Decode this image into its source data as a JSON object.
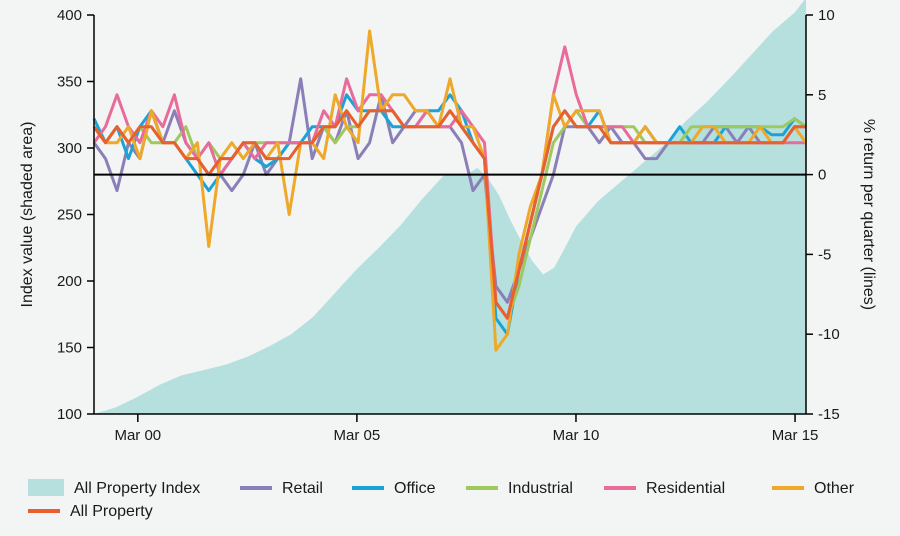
{
  "chart_data": {
    "type": "line",
    "area": {
      "name": "All Property Index",
      "color": "#b5e0de",
      "y_axis": "left",
      "x": [
        1999.0,
        1999.5,
        2000.0,
        2000.5,
        2001.0,
        2001.5,
        2002.0,
        2002.5,
        2003.0,
        2003.5,
        2004.0,
        2004.5,
        2005.0,
        2005.5,
        2006.0,
        2006.5,
        2007.0,
        2007.5,
        2007.75,
        2008.0,
        2008.25,
        2008.5,
        2008.75,
        2009.0,
        2009.25,
        2009.5,
        2009.75,
        2010.0,
        2010.5,
        2011.0,
        2011.5,
        2012.0,
        2012.5,
        2013.0,
        2013.5,
        2014.0,
        2014.5,
        2015.0,
        2015.25
      ],
      "values": [
        100,
        105,
        113,
        122,
        129,
        133,
        137,
        143,
        151,
        160,
        173,
        191,
        209,
        225,
        242,
        262,
        280,
        280,
        285,
        277,
        264,
        246,
        230,
        215,
        205,
        210,
        225,
        241,
        260,
        274,
        288,
        302,
        320,
        335,
        352,
        370,
        388,
        402,
        413
      ]
    },
    "series": [
      {
        "name": "Retail",
        "color": "#8b7fb8",
        "values": [
          2,
          1,
          -1,
          2,
          1,
          4,
          2,
          4,
          2,
          1,
          0,
          0,
          -1,
          0,
          2,
          0,
          1,
          2,
          6,
          1,
          3,
          2,
          4,
          1,
          2,
          5,
          2,
          3,
          4,
          4,
          3,
          3,
          2,
          -1,
          0,
          -7,
          -8,
          -6,
          -4,
          -2,
          0,
          3,
          3,
          3,
          2,
          3,
          2,
          2,
          1,
          1,
          2,
          2,
          2,
          2,
          3,
          3,
          2,
          3,
          2,
          2,
          2,
          3,
          3
        ]
      },
      {
        "name": "Office",
        "color": "#1ba3d8",
        "values": [
          3.5,
          2,
          3,
          1,
          3,
          4,
          2,
          2,
          1,
          0,
          -1,
          0,
          1,
          2,
          1,
          0.5,
          1,
          2,
          2,
          3,
          3,
          3,
          5,
          4,
          4,
          4,
          3,
          3,
          3,
          4,
          4,
          5,
          4,
          2,
          1,
          -9,
          -10,
          -6,
          -3,
          0,
          3,
          4,
          3,
          3,
          4,
          2,
          2,
          2,
          3,
          2,
          2,
          3,
          2,
          2,
          2,
          3,
          3,
          3,
          3,
          2.5,
          2.5,
          3.5,
          3
        ]
      },
      {
        "name": "Industrial",
        "color": "#9dc95f",
        "values": [
          3,
          2,
          3,
          2,
          3,
          2,
          2,
          2,
          3,
          1,
          2,
          1,
          1,
          2,
          2,
          2,
          2,
          2,
          2,
          2,
          3,
          2,
          3,
          3,
          4,
          4,
          4,
          3,
          3,
          3,
          3,
          4,
          3,
          2,
          1,
          -8,
          -9,
          -7,
          -4,
          -1,
          2,
          3,
          4,
          3,
          3,
          3,
          3,
          3,
          2,
          2,
          2,
          2,
          3,
          3,
          3,
          3,
          3,
          3,
          3,
          3,
          3,
          3.5,
          3
        ]
      },
      {
        "name": "Residential",
        "color": "#e96b9a",
        "values": [
          2,
          3,
          5,
          3,
          2,
          4,
          3,
          5,
          2,
          1,
          2,
          0,
          1,
          2,
          1,
          2,
          2,
          2,
          2,
          2,
          4,
          3,
          6,
          4,
          5,
          5,
          4,
          3,
          3,
          4,
          3,
          3,
          4,
          3,
          2,
          -8,
          -9,
          -6,
          -3,
          0,
          5,
          8,
          5,
          3,
          3,
          3,
          3,
          2,
          2,
          2,
          2,
          2,
          2,
          2,
          2,
          2,
          2,
          2,
          2,
          2,
          2,
          2,
          2
        ]
      },
      {
        "name": "Other",
        "color": "#eea82a",
        "values": [
          3,
          2,
          2,
          3,
          1,
          4,
          2,
          2,
          1,
          2,
          -4.5,
          1,
          2,
          1,
          2,
          1,
          2,
          -2.5,
          2,
          2,
          1,
          5,
          3,
          2,
          9,
          4,
          5,
          5,
          4,
          4,
          3,
          6,
          3,
          3,
          1,
          -11,
          -10,
          -5,
          -2,
          0,
          5,
          3,
          4,
          4,
          4,
          2,
          2,
          2,
          3,
          2,
          2,
          2,
          2,
          3,
          3,
          2,
          2,
          2,
          3,
          2,
          2,
          3,
          2
        ]
      },
      {
        "name": "All Property",
        "color": "#e8602f",
        "values": [
          3,
          2,
          3,
          2,
          3,
          3,
          2,
          2,
          1,
          1,
          0,
          1,
          1,
          2,
          2,
          1,
          1,
          1,
          2,
          2,
          3,
          3,
          4,
          3,
          4,
          4,
          4,
          3,
          3,
          3,
          3,
          4,
          3,
          2,
          1,
          -8,
          -9,
          -6,
          -3,
          0,
          3,
          4,
          3,
          3,
          3,
          2,
          2,
          2,
          2,
          2,
          2,
          2,
          2,
          2,
          2,
          2,
          2,
          2,
          2,
          2,
          2,
          3,
          3
        ]
      }
    ],
    "series_x_start": 1999.0,
    "series_x_end": 2015.25,
    "xlabel": "",
    "x_ticks": [
      {
        "value": 2000.0,
        "label": "Mar 00"
      },
      {
        "value": 2005.0,
        "label": "Mar 05"
      },
      {
        "value": 2010.0,
        "label": "Mar 10"
      },
      {
        "value": 2015.0,
        "label": "Mar 15"
      }
    ],
    "xlim": [
      1999.0,
      2015.25
    ],
    "ylabel_left": "Index value (shaded area)",
    "ylim_left": [
      100,
      400
    ],
    "yticks_left": [
      "400",
      "350",
      "300",
      "250",
      "200",
      "150",
      "100"
    ],
    "yticks_left_values": [
      400,
      350,
      300,
      250,
      200,
      150,
      100
    ],
    "ylabel_right": "% return per quarter (lines)",
    "ylim_right": [
      -15,
      10
    ],
    "yticks_right": [
      "10",
      "5",
      "0",
      "-5",
      "-10",
      "-15"
    ],
    "yticks_right_values": [
      10,
      5,
      0,
      -5,
      -10,
      -15
    ],
    "zero_line": 0,
    "grid": false,
    "legend_position": "bottom",
    "legend": [
      {
        "label": "All Property Index",
        "kind": "area",
        "color": "#b5e0de"
      },
      {
        "label": "Retail",
        "kind": "line",
        "color": "#8b7fb8"
      },
      {
        "label": "Office",
        "kind": "line",
        "color": "#1ba3d8"
      },
      {
        "label": "Industrial",
        "kind": "line",
        "color": "#9dc95f"
      },
      {
        "label": "Residential",
        "kind": "line",
        "color": "#e96b9a"
      },
      {
        "label": "Other",
        "kind": "line",
        "color": "#eea82a"
      },
      {
        "label": "All Property",
        "kind": "line",
        "color": "#e8602f"
      }
    ]
  }
}
